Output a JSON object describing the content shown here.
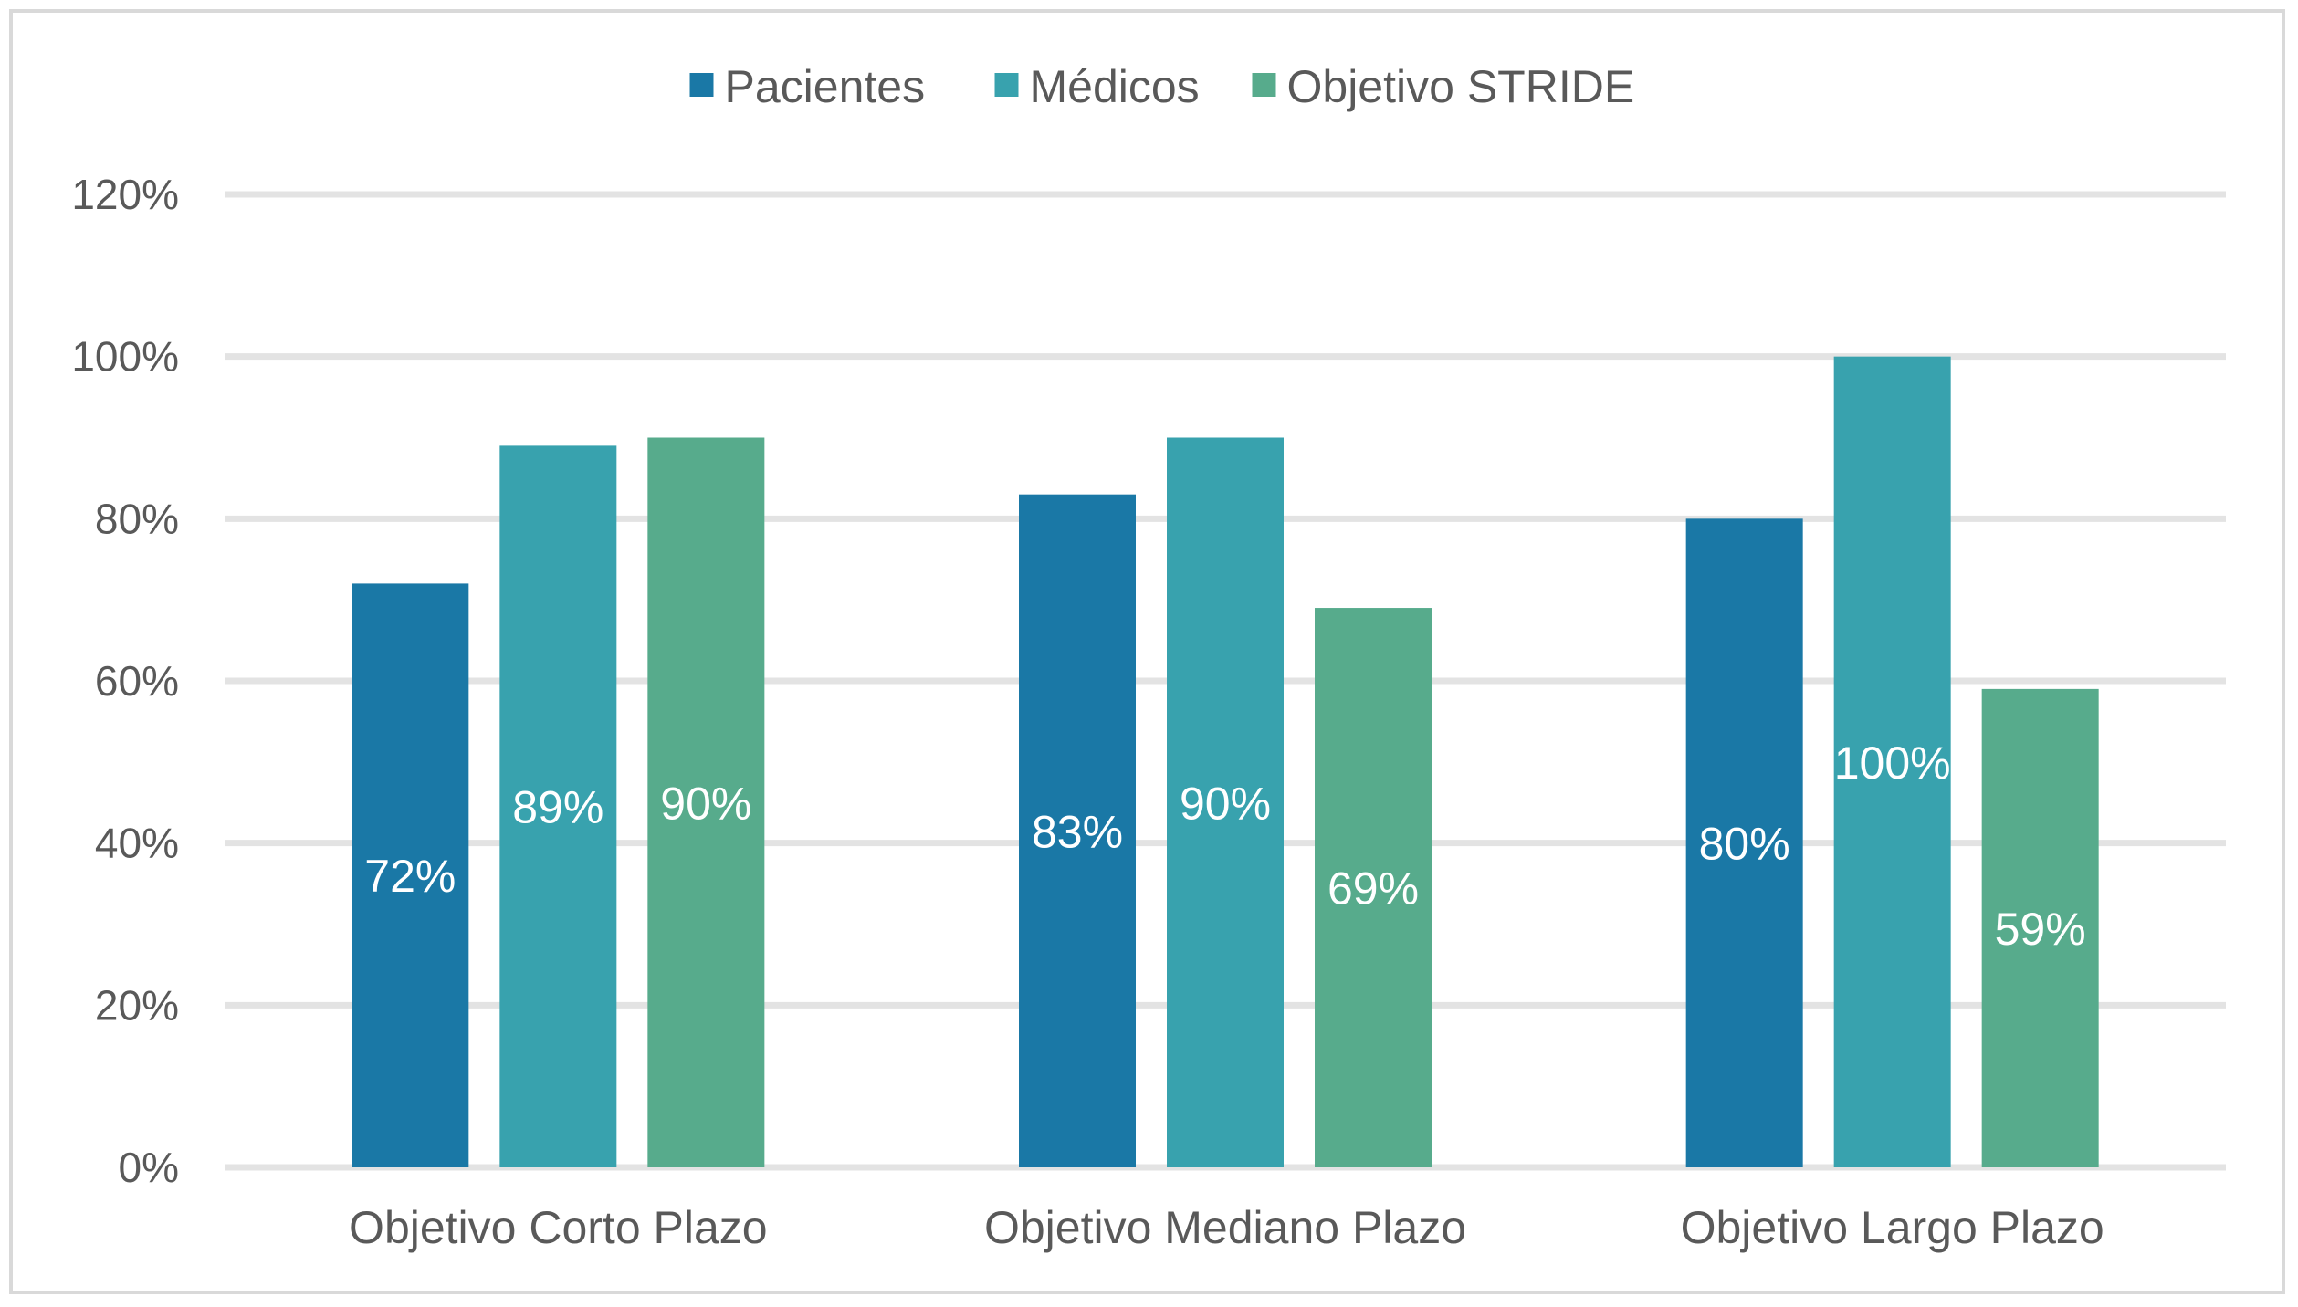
{
  "chart_data": {
    "type": "bar",
    "title": "",
    "xlabel": "",
    "ylabel": "",
    "categories": [
      "Objetivo Corto Plazo",
      "Objetivo Mediano Plazo",
      "Objetivo Largo Plazo"
    ],
    "series": [
      {
        "name": "Pacientes",
        "values": [
          72,
          83,
          80
        ],
        "labels": [
          "72%",
          "83%",
          "80%"
        ],
        "color": "#1a78a6"
      },
      {
        "name": "Médicos",
        "values": [
          89,
          90,
          100
        ],
        "labels": [
          "89%",
          "90%",
          "100%"
        ],
        "color": "#38a2ae"
      },
      {
        "name": "Objetivo STRIDE",
        "values": [
          90,
          69,
          59
        ],
        "labels": [
          "90%",
          "69%",
          "59%"
        ],
        "color": "#57ab8c"
      }
    ],
    "ylim": [
      0,
      120
    ],
    "yticks": [
      "0%",
      "20%",
      "40%",
      "60%",
      "80%",
      "100%",
      "120%"
    ],
    "grid": true,
    "legend_position": "top",
    "data_labels": "inside-center"
  }
}
